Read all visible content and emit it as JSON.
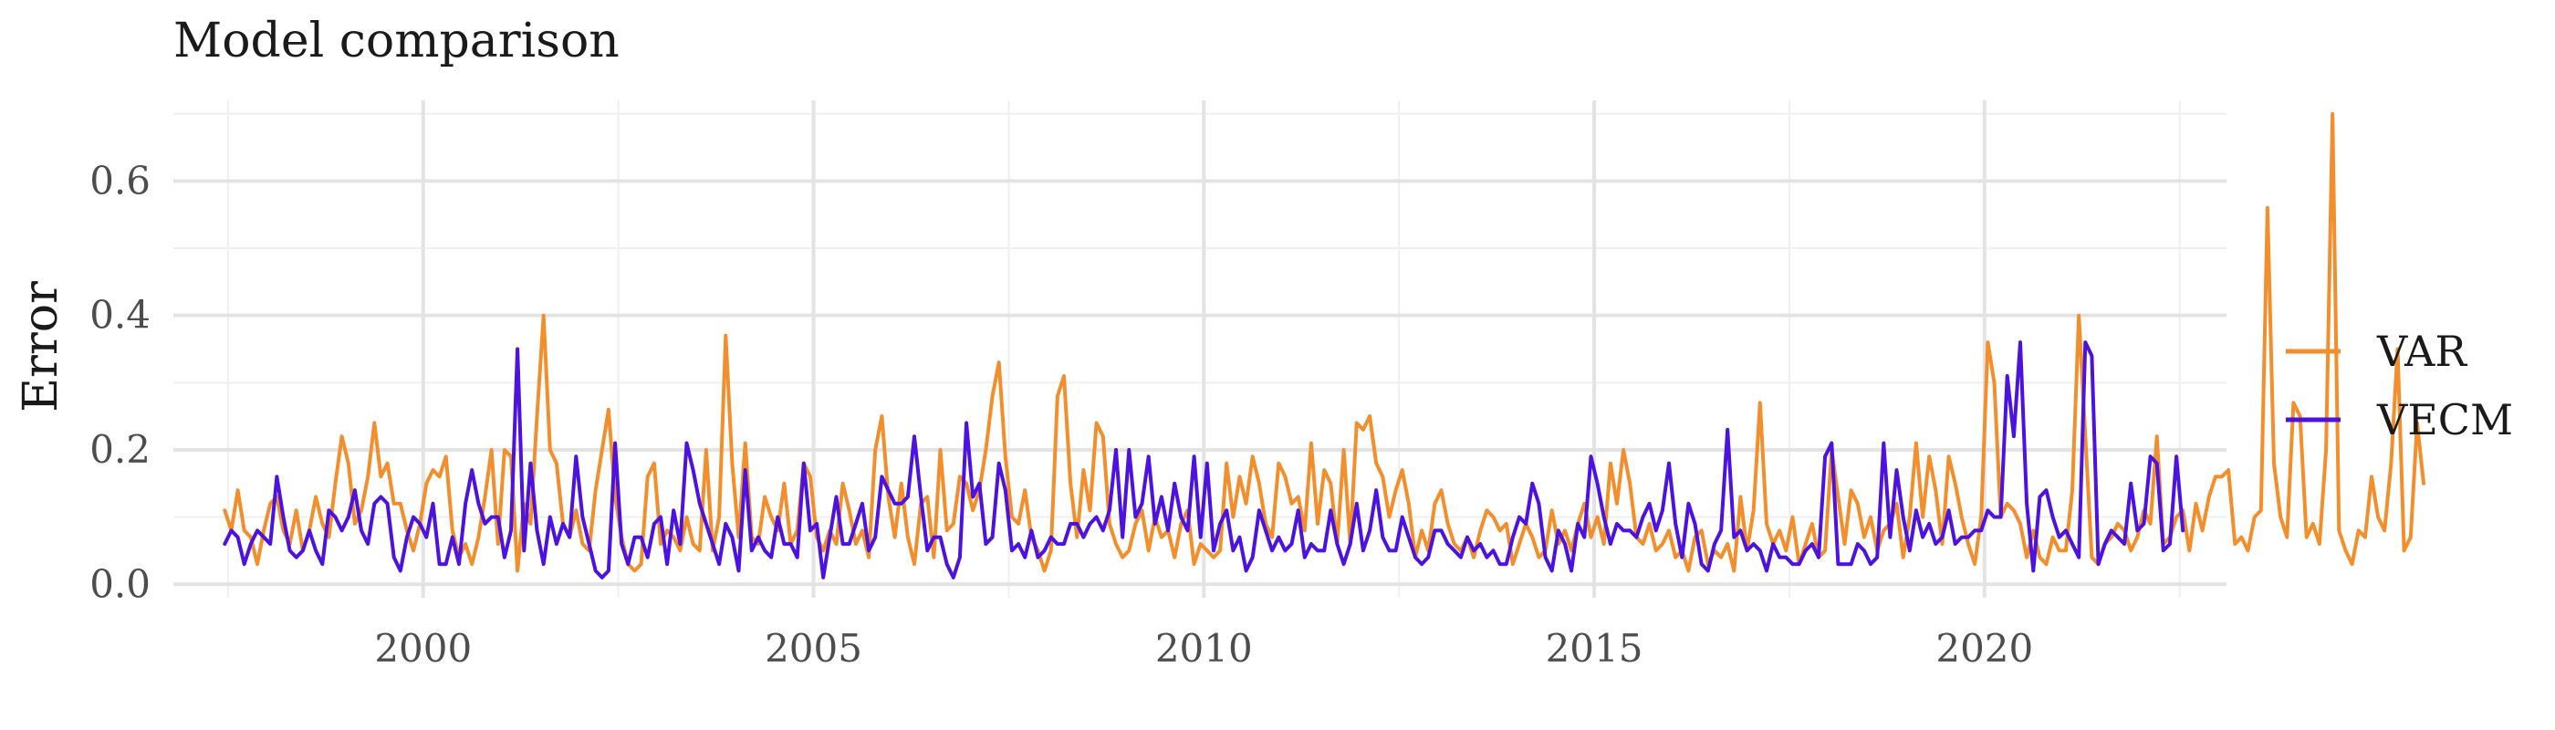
{
  "chart_data": {
    "type": "line",
    "title": "Model comparison",
    "xlabel": "",
    "ylabel": "Error",
    "x_start": "1997-06",
    "x_step": "month",
    "xlim": [
      1996.8,
      2023.1
    ],
    "ylim": [
      -0.02,
      0.72
    ],
    "x_ticks": [
      2000,
      2005,
      2010,
      2015,
      2020
    ],
    "x_tick_labels": [
      "2000",
      "2005",
      "2010",
      "2015",
      "2020"
    ],
    "y_ticks": [
      0.0,
      0.2,
      0.4,
      0.6
    ],
    "y_tick_labels": [
      "0.0",
      "0.2",
      "0.4",
      "0.6"
    ],
    "grid": true,
    "legend_position": "right",
    "series": [
      {
        "name": "VAR",
        "color": "#f28e2b",
        "values": [
          0.11,
          0.08,
          0.14,
          0.08,
          0.07,
          0.03,
          0.08,
          0.12,
          0.13,
          0.08,
          0.06,
          0.11,
          0.05,
          0.08,
          0.13,
          0.09,
          0.07,
          0.15,
          0.22,
          0.18,
          0.09,
          0.11,
          0.16,
          0.24,
          0.16,
          0.18,
          0.12,
          0.12,
          0.08,
          0.05,
          0.09,
          0.15,
          0.17,
          0.16,
          0.19,
          0.08,
          0.04,
          0.06,
          0.03,
          0.07,
          0.13,
          0.2,
          0.06,
          0.2,
          0.19,
          0.02,
          0.12,
          0.09,
          0.25,
          0.4,
          0.2,
          0.18,
          0.09,
          0.07,
          0.11,
          0.06,
          0.05,
          0.14,
          0.2,
          0.26,
          0.13,
          0.07,
          0.03,
          0.02,
          0.03,
          0.16,
          0.18,
          0.06,
          0.08,
          0.07,
          0.05,
          0.1,
          0.06,
          0.05,
          0.2,
          0.05,
          0.1,
          0.37,
          0.18,
          0.07,
          0.21,
          0.07,
          0.06,
          0.13,
          0.1,
          0.08,
          0.15,
          0.06,
          0.08,
          0.18,
          0.16,
          0.07,
          0.05,
          0.08,
          0.06,
          0.15,
          0.11,
          0.06,
          0.08,
          0.04,
          0.2,
          0.25,
          0.13,
          0.07,
          0.15,
          0.07,
          0.03,
          0.12,
          0.13,
          0.04,
          0.2,
          0.08,
          0.09,
          0.16,
          0.15,
          0.11,
          0.14,
          0.2,
          0.28,
          0.33,
          0.19,
          0.1,
          0.09,
          0.14,
          0.07,
          0.05,
          0.02,
          0.05,
          0.28,
          0.31,
          0.15,
          0.07,
          0.17,
          0.11,
          0.24,
          0.22,
          0.09,
          0.06,
          0.04,
          0.05,
          0.09,
          0.11,
          0.05,
          0.1,
          0.07,
          0.08,
          0.04,
          0.09,
          0.11,
          0.03,
          0.06,
          0.05,
          0.04,
          0.05,
          0.18,
          0.1,
          0.16,
          0.12,
          0.19,
          0.15,
          0.09,
          0.07,
          0.18,
          0.16,
          0.12,
          0.13,
          0.08,
          0.21,
          0.09,
          0.17,
          0.15,
          0.06,
          0.2,
          0.06,
          0.24,
          0.23,
          0.25,
          0.18,
          0.16,
          0.1,
          0.14,
          0.17,
          0.12,
          0.04,
          0.08,
          0.05,
          0.12,
          0.14,
          0.09,
          0.06,
          0.05,
          0.07,
          0.04,
          0.08,
          0.11,
          0.1,
          0.08,
          0.09,
          0.03,
          0.06,
          0.09,
          0.07,
          0.04,
          0.05,
          0.11,
          0.06,
          0.08,
          0.05,
          0.09,
          0.12,
          0.07,
          0.1,
          0.06,
          0.18,
          0.12,
          0.2,
          0.15,
          0.07,
          0.06,
          0.09,
          0.05,
          0.06,
          0.08,
          0.04,
          0.05,
          0.02,
          0.07,
          0.08,
          0.03,
          0.05,
          0.04,
          0.06,
          0.02,
          0.13,
          0.05,
          0.11,
          0.27,
          0.09,
          0.06,
          0.08,
          0.05,
          0.1,
          0.03,
          0.06,
          0.09,
          0.04,
          0.05,
          0.2,
          0.13,
          0.06,
          0.14,
          0.12,
          0.07,
          0.1,
          0.05,
          0.08,
          0.09,
          0.12,
          0.04,
          0.1,
          0.21,
          0.1,
          0.19,
          0.14,
          0.06,
          0.19,
          0.15,
          0.1,
          0.06,
          0.03,
          0.1,
          0.36,
          0.3,
          0.1,
          0.12,
          0.11,
          0.09,
          0.04,
          0.08,
          0.04,
          0.03,
          0.07,
          0.05,
          0.05,
          0.14,
          0.4,
          0.22,
          0.04,
          0.03,
          0.06,
          0.07,
          0.09,
          0.08,
          0.05,
          0.07,
          0.11,
          0.09,
          0.22,
          0.06,
          0.07,
          0.1,
          0.11,
          0.05,
          0.12,
          0.08,
          0.13,
          0.16,
          0.16,
          0.17,
          0.06,
          0.07,
          0.05,
          0.1,
          0.11,
          0.56,
          0.18,
          0.1,
          0.07,
          0.27,
          0.25,
          0.07,
          0.09,
          0.06,
          0.2,
          0.7,
          0.08,
          0.05,
          0.03,
          0.08,
          0.07,
          0.16,
          0.1,
          0.08,
          0.18,
          0.35,
          0.05,
          0.07,
          0.24,
          0.15
        ]
      },
      {
        "name": "VECM",
        "color": "#4b12e0",
        "values": [
          0.06,
          0.08,
          0.07,
          0.03,
          0.06,
          0.08,
          0.07,
          0.06,
          0.16,
          0.1,
          0.05,
          0.04,
          0.05,
          0.08,
          0.05,
          0.03,
          0.11,
          0.1,
          0.08,
          0.1,
          0.14,
          0.08,
          0.06,
          0.12,
          0.13,
          0.12,
          0.04,
          0.02,
          0.07,
          0.1,
          0.09,
          0.07,
          0.12,
          0.03,
          0.03,
          0.07,
          0.03,
          0.12,
          0.17,
          0.12,
          0.09,
          0.1,
          0.1,
          0.04,
          0.08,
          0.35,
          0.05,
          0.18,
          0.08,
          0.03,
          0.1,
          0.06,
          0.09,
          0.07,
          0.19,
          0.1,
          0.06,
          0.02,
          0.01,
          0.02,
          0.21,
          0.06,
          0.03,
          0.07,
          0.07,
          0.04,
          0.09,
          0.1,
          0.03,
          0.11,
          0.06,
          0.21,
          0.17,
          0.12,
          0.09,
          0.06,
          0.03,
          0.09,
          0.07,
          0.02,
          0.17,
          0.05,
          0.07,
          0.05,
          0.04,
          0.1,
          0.06,
          0.06,
          0.04,
          0.18,
          0.08,
          0.09,
          0.01,
          0.07,
          0.13,
          0.06,
          0.06,
          0.09,
          0.12,
          0.05,
          0.07,
          0.16,
          0.14,
          0.12,
          0.12,
          0.13,
          0.22,
          0.13,
          0.05,
          0.07,
          0.07,
          0.03,
          0.01,
          0.04,
          0.24,
          0.13,
          0.15,
          0.06,
          0.07,
          0.18,
          0.14,
          0.05,
          0.06,
          0.04,
          0.08,
          0.04,
          0.05,
          0.07,
          0.06,
          0.06,
          0.09,
          0.09,
          0.07,
          0.09,
          0.1,
          0.08,
          0.11,
          0.2,
          0.07,
          0.2,
          0.1,
          0.12,
          0.19,
          0.09,
          0.13,
          0.08,
          0.15,
          0.1,
          0.08,
          0.19,
          0.07,
          0.18,
          0.05,
          0.09,
          0.11,
          0.05,
          0.07,
          0.02,
          0.04,
          0.11,
          0.08,
          0.05,
          0.07,
          0.05,
          0.06,
          0.11,
          0.04,
          0.06,
          0.05,
          0.05,
          0.11,
          0.06,
          0.03,
          0.06,
          0.12,
          0.05,
          0.08,
          0.14,
          0.07,
          0.05,
          0.05,
          0.1,
          0.07,
          0.04,
          0.03,
          0.04,
          0.08,
          0.08,
          0.06,
          0.05,
          0.04,
          0.07,
          0.05,
          0.06,
          0.04,
          0.05,
          0.03,
          0.03,
          0.07,
          0.1,
          0.09,
          0.15,
          0.12,
          0.04,
          0.02,
          0.08,
          0.06,
          0.02,
          0.09,
          0.07,
          0.19,
          0.15,
          0.1,
          0.06,
          0.09,
          0.08,
          0.08,
          0.07,
          0.1,
          0.12,
          0.08,
          0.11,
          0.18,
          0.09,
          0.04,
          0.12,
          0.09,
          0.03,
          0.02,
          0.06,
          0.08,
          0.23,
          0.07,
          0.08,
          0.05,
          0.06,
          0.05,
          0.02,
          0.06,
          0.04,
          0.04,
          0.03,
          0.03,
          0.05,
          0.06,
          0.04,
          0.19,
          0.21,
          0.03,
          0.03,
          0.03,
          0.06,
          0.05,
          0.03,
          0.04,
          0.21,
          0.07,
          0.17,
          0.1,
          0.05,
          0.11,
          0.07,
          0.09,
          0.06,
          0.07,
          0.11,
          0.06,
          0.07,
          0.07,
          0.08,
          0.08,
          0.11,
          0.1,
          0.1,
          0.31,
          0.22,
          0.36,
          0.12,
          0.02,
          0.13,
          0.14,
          0.1,
          0.07,
          0.08,
          0.06,
          0.04,
          0.36,
          0.34,
          0.03,
          0.06,
          0.08,
          0.07,
          0.06,
          0.15,
          0.08,
          0.09,
          0.19,
          0.18,
          0.05,
          0.06,
          0.19,
          0.08
        ]
      }
    ]
  }
}
